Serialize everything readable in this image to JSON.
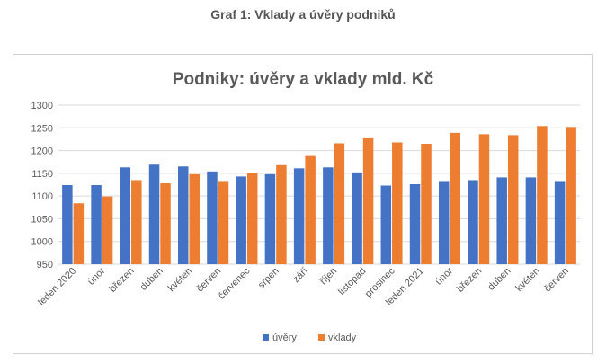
{
  "page": {
    "caption": "Graf 1: Vklady a úvěry podniků"
  },
  "chart_data": {
    "type": "bar",
    "title": "Podniky: úvěry a vklady mld. Kč",
    "xlabel": "",
    "ylabel": "",
    "ylim": [
      950,
      1300
    ],
    "yticks": [
      950,
      1000,
      1050,
      1100,
      1150,
      1200,
      1250,
      1300
    ],
    "grid": true,
    "legend_position": "bottom",
    "categories": [
      "leden 2020",
      "únor",
      "březen",
      "duben",
      "květen",
      "červen",
      "červenec",
      "srpen",
      "září",
      "říjen",
      "listopad",
      "prosinec",
      "leden 2021",
      "únor",
      "březen",
      "duben",
      "květen",
      "červen"
    ],
    "series": [
      {
        "name": "úvěry",
        "color": "#4472c4",
        "values": [
          1124,
          1124,
          1163,
          1169,
          1165,
          1154,
          1143,
          1148,
          1161,
          1163,
          1152,
          1123,
          1126,
          1133,
          1135,
          1141,
          1141,
          1133
        ]
      },
      {
        "name": "vklady",
        "color": "#ed7d31",
        "values": [
          1084,
          1099,
          1135,
          1128,
          1148,
          1133,
          1150,
          1168,
          1188,
          1216,
          1227,
          1218,
          1215,
          1239,
          1236,
          1234,
          1254,
          1252
        ]
      }
    ]
  }
}
